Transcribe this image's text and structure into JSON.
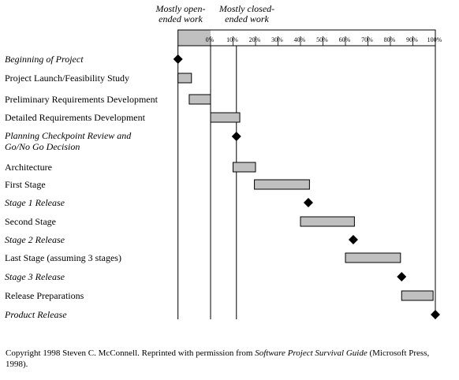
{
  "phase_labels": {
    "open_ended": [
      "Mostly open-",
      "ended work"
    ],
    "closed_ended": [
      "Mostly closed-",
      "ended work"
    ]
  },
  "chart_data": {
    "type": "gantt",
    "x_axis": {
      "unit": "%",
      "ticks": [
        "0%",
        "10%",
        "20%",
        "30%",
        "40%",
        "50%",
        "60%",
        "70%",
        "80%",
        "90%",
        "100%"
      ],
      "range": [
        0,
        100
      ]
    },
    "open_ended_region": [
      -14.5,
      0
    ],
    "guide_lines": [
      -14.5,
      0,
      11.5,
      100
    ],
    "tasks": [
      {
        "label": "Beginning of Project",
        "milestone": true,
        "at": -14.5
      },
      {
        "label": "Project Launch/Feasibility Study",
        "milestone": false,
        "start": -14.5,
        "end": -8.5
      },
      {
        "label": "Preliminary Requirements Development",
        "milestone": false,
        "start": -9.5,
        "end": 0
      },
      {
        "label": "Detailed Requirements Development",
        "milestone": false,
        "start": 0,
        "end": 13
      },
      {
        "label": [
          "Planning Checkpoint Review and",
          "Go/No Go Decision"
        ],
        "milestone": true,
        "at": 11.5
      },
      {
        "label": "Architecture",
        "milestone": false,
        "start": 10,
        "end": 20
      },
      {
        "label": "First Stage",
        "milestone": false,
        "start": 19.5,
        "end": 44
      },
      {
        "label": "Stage 1 Release",
        "milestone": true,
        "at": 43.5
      },
      {
        "label": "Second Stage",
        "milestone": false,
        "start": 40,
        "end": 64
      },
      {
        "label": "Stage 2 Release",
        "milestone": true,
        "at": 63.5
      },
      {
        "label": "Last Stage (assuming 3 stages)",
        "milestone": false,
        "start": 60,
        "end": 84.5
      },
      {
        "label": "Stage 3 Release",
        "milestone": true,
        "at": 85
      },
      {
        "label": "Release Preparations",
        "milestone": false,
        "start": 85,
        "end": 99
      },
      {
        "label": "Product Release",
        "milestone": true,
        "at": 100
      }
    ]
  },
  "footer": {
    "text_before": "Copyright 1998 Steven C. McConnell. Reprinted with permission from ",
    "book_title": "Software Project Survival Guide",
    "text_after": " (Microsoft Press, 1998)."
  }
}
